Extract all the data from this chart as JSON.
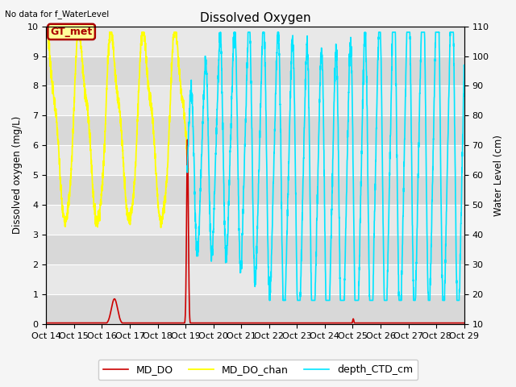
{
  "title": "Dissolved Oxygen",
  "note": "No data for f_WaterLevel",
  "ylabel_left": "Dissolved oxygen (mg/L)",
  "ylabel_right": "Water Level (cm)",
  "ylim_left": [
    0.0,
    10.0
  ],
  "ylim_right": [
    10,
    110
  ],
  "yticks_left": [
    0.0,
    1.0,
    2.0,
    3.0,
    4.0,
    5.0,
    6.0,
    7.0,
    8.0,
    9.0,
    10.0
  ],
  "yticks_right": [
    10,
    20,
    30,
    40,
    50,
    60,
    70,
    80,
    90,
    100,
    110
  ],
  "xtick_labels": [
    "Oct 14",
    "Oct 15",
    "Oct 16",
    "Oct 17",
    "Oct 18",
    "Oct 19",
    "Oct 20",
    "Oct 21",
    "Oct 22",
    "Oct 23",
    "Oct 24",
    "Oct 25",
    "Oct 26",
    "Oct 27",
    "Oct 28",
    "Oct 29"
  ],
  "legend_labels": [
    "MD_DO",
    "MD_DO_chan",
    "depth_CTD_cm"
  ],
  "gt_met_label": "GT_met",
  "gt_met_color": "#aa0000",
  "gt_met_bg": "#ffff99",
  "plot_bg_color": "#e0e0e0",
  "grid_color": "#ffffff",
  "fig_bg_color": "#f5f5f5",
  "md_do_color": "#cc0000",
  "md_do_chan_color": "#ffff00",
  "depth_ctd_color": "#00e5ff",
  "band_colors": [
    "#d8d8d8",
    "#e8e8e8"
  ]
}
